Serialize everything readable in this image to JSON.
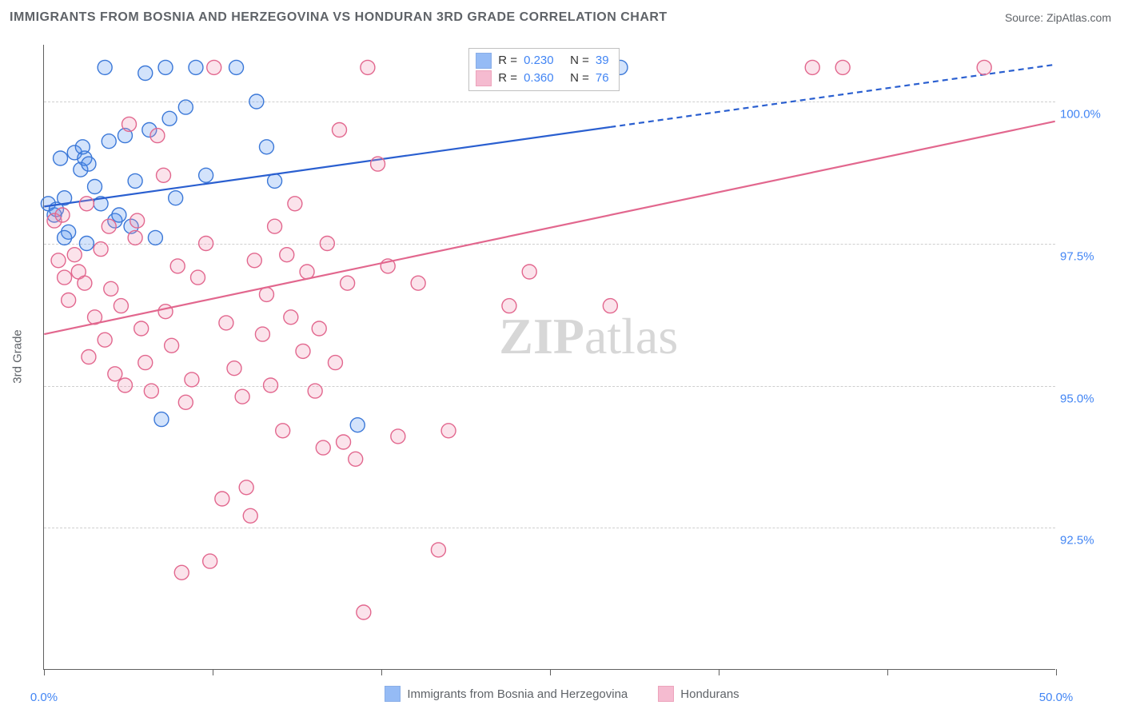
{
  "title": "IMMIGRANTS FROM BOSNIA AND HERZEGOVINA VS HONDURAN 3RD GRADE CORRELATION CHART",
  "source_label": "Source:",
  "source_name": "ZipAtlas.com",
  "watermark_zip": "ZIP",
  "watermark_atlas": "atlas",
  "chart": {
    "type": "scatter",
    "xlim": [
      0,
      50
    ],
    "ylim": [
      90,
      101
    ],
    "x_ticks": [
      0,
      8.33,
      16.67,
      25,
      33.33,
      41.67,
      50
    ],
    "x_tick_labels_shown": {
      "0": "0.0%",
      "50": "50.0%"
    },
    "y_ticks": [
      92.5,
      95.0,
      97.5,
      100.0
    ],
    "y_tick_labels": [
      "92.5%",
      "95.0%",
      "97.5%",
      "100.0%"
    ],
    "y_axis_label": "3rd Grade",
    "background_color": "#ffffff",
    "grid_color": "#cfcfcf",
    "grid_dash": "4,4",
    "axis_color": "#606060",
    "marker_radius": 9,
    "marker_stroke_width": 1.4,
    "marker_fill_opacity": 0.25,
    "line_width": 2.2,
    "line_dash_segment": "7,5",
    "series": [
      {
        "id": "bosnia",
        "label": "Immigrants from Bosnia and Herzegovina",
        "color": "#4f8ff0",
        "stroke": "#3b78d8",
        "line_color": "#2a5fd0",
        "R": "0.230",
        "N": "39",
        "trend": {
          "x1": 0,
          "y1": 98.15,
          "x2": 50,
          "y2": 100.65,
          "dash_from_x": 28
        },
        "points": [
          [
            0.2,
            98.2
          ],
          [
            0.5,
            98.0
          ],
          [
            0.6,
            98.1
          ],
          [
            1.0,
            98.3
          ],
          [
            1.2,
            97.7
          ],
          [
            1.5,
            99.1
          ],
          [
            1.8,
            98.8
          ],
          [
            2.0,
            99.0
          ],
          [
            2.2,
            98.9
          ],
          [
            2.5,
            98.5
          ],
          [
            3.0,
            100.6
          ],
          [
            3.2,
            99.3
          ],
          [
            3.5,
            97.9
          ],
          [
            4.0,
            99.4
          ],
          [
            4.5,
            98.6
          ],
          [
            5.0,
            100.5
          ],
          [
            5.2,
            99.5
          ],
          [
            5.5,
            97.6
          ],
          [
            6.0,
            100.6
          ],
          [
            6.2,
            99.7
          ],
          [
            7.0,
            99.9
          ],
          [
            7.5,
            100.6
          ],
          [
            8.0,
            98.7
          ],
          [
            9.5,
            100.6
          ],
          [
            10.5,
            100.0
          ],
          [
            11.0,
            99.2
          ],
          [
            11.4,
            98.6
          ],
          [
            5.8,
            94.4
          ],
          [
            15.5,
            94.3
          ],
          [
            27.0,
            100.6
          ],
          [
            28.5,
            100.6
          ],
          [
            1.0,
            97.6
          ],
          [
            2.8,
            98.2
          ],
          [
            0.8,
            99.0
          ],
          [
            1.9,
            99.2
          ],
          [
            4.3,
            97.8
          ],
          [
            3.7,
            98.0
          ],
          [
            2.1,
            97.5
          ],
          [
            6.5,
            98.3
          ]
        ]
      },
      {
        "id": "honduran",
        "label": "Hondurans",
        "color": "#f08fb1",
        "stroke": "#e2678e",
        "line_color": "#e2678e",
        "R": "0.360",
        "N": "76",
        "trend": {
          "x1": 0,
          "y1": 95.9,
          "x2": 50,
          "y2": 99.65,
          "dash_from_x": 50
        },
        "points": [
          [
            0.5,
            97.9
          ],
          [
            0.7,
            97.2
          ],
          [
            1.0,
            96.9
          ],
          [
            1.2,
            96.5
          ],
          [
            1.5,
            97.3
          ],
          [
            1.7,
            97.0
          ],
          [
            2.0,
            96.8
          ],
          [
            2.2,
            95.5
          ],
          [
            2.5,
            96.2
          ],
          [
            2.8,
            97.4
          ],
          [
            3.0,
            95.8
          ],
          [
            3.3,
            96.7
          ],
          [
            3.5,
            95.2
          ],
          [
            3.8,
            96.4
          ],
          [
            4.0,
            95.0
          ],
          [
            4.2,
            99.6
          ],
          [
            4.5,
            97.6
          ],
          [
            4.8,
            96.0
          ],
          [
            5.0,
            95.4
          ],
          [
            5.3,
            94.9
          ],
          [
            5.6,
            99.4
          ],
          [
            5.9,
            98.7
          ],
          [
            6.0,
            96.3
          ],
          [
            6.3,
            95.7
          ],
          [
            6.6,
            97.1
          ],
          [
            7.0,
            94.7
          ],
          [
            7.3,
            95.1
          ],
          [
            7.6,
            96.9
          ],
          [
            8.0,
            97.5
          ],
          [
            8.4,
            100.6
          ],
          [
            8.8,
            93.0
          ],
          [
            9.0,
            96.1
          ],
          [
            9.4,
            95.3
          ],
          [
            9.8,
            94.8
          ],
          [
            10.0,
            93.2
          ],
          [
            10.4,
            97.2
          ],
          [
            10.8,
            95.9
          ],
          [
            11.0,
            96.6
          ],
          [
            11.4,
            97.8
          ],
          [
            11.8,
            94.2
          ],
          [
            12.0,
            97.3
          ],
          [
            12.4,
            98.2
          ],
          [
            12.8,
            95.6
          ],
          [
            13.0,
            97.0
          ],
          [
            13.4,
            94.9
          ],
          [
            13.8,
            93.9
          ],
          [
            14.0,
            97.5
          ],
          [
            14.4,
            95.4
          ],
          [
            14.8,
            94.0
          ],
          [
            15.0,
            96.8
          ],
          [
            15.4,
            93.7
          ],
          [
            15.8,
            91.0
          ],
          [
            16.0,
            100.6
          ],
          [
            16.5,
            98.9
          ],
          [
            17.0,
            97.1
          ],
          [
            17.5,
            94.1
          ],
          [
            14.6,
            99.5
          ],
          [
            19.5,
            92.1
          ],
          [
            20.0,
            94.2
          ],
          [
            6.8,
            91.7
          ],
          [
            8.2,
            91.9
          ],
          [
            10.2,
            92.7
          ],
          [
            23.0,
            96.4
          ],
          [
            24.0,
            97.0
          ],
          [
            28.0,
            96.4
          ],
          [
            38.0,
            100.6
          ],
          [
            39.5,
            100.6
          ],
          [
            46.5,
            100.6
          ],
          [
            2.1,
            98.2
          ],
          [
            3.2,
            97.8
          ],
          [
            0.9,
            98.0
          ],
          [
            4.6,
            97.9
          ],
          [
            12.2,
            96.2
          ],
          [
            13.6,
            96.0
          ],
          [
            11.2,
            95.0
          ],
          [
            18.5,
            96.8
          ]
        ]
      }
    ],
    "bottom_legend": [
      {
        "label": "Immigrants from Bosnia and Herzegovina",
        "color": "#4f8ff0",
        "stroke": "#3b78d8"
      },
      {
        "label": "Hondurans",
        "color": "#f08fb1",
        "stroke": "#e2678e"
      }
    ]
  }
}
